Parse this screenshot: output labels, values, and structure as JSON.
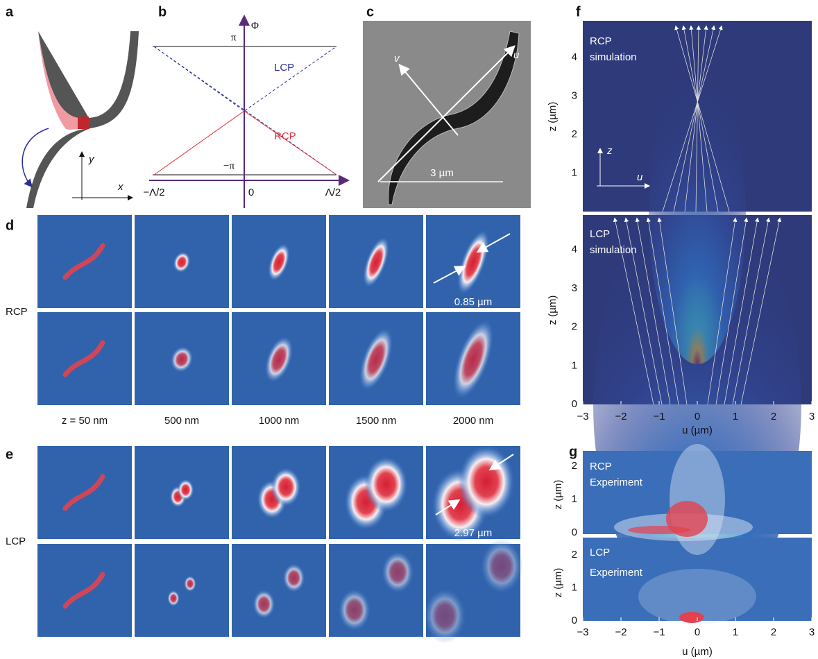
{
  "panels": {
    "a": {
      "label": "a",
      "y": "y",
      "x": "x"
    },
    "b": {
      "label": "b",
      "phi": "Φ",
      "pi": "π",
      "minus_pi": "−π",
      "lcp": "LCP",
      "rcp": "RCP",
      "xticks": [
        "−Λ/2",
        "0",
        "Λ/2"
      ]
    },
    "c": {
      "label": "c",
      "v": "v",
      "u": "u",
      "scale": "3 µm"
    },
    "d": {
      "label": "d",
      "row": "RCP",
      "size": "0.85 µm",
      "captions": [
        "z = 50 nm",
        "500 nm",
        "1000 nm",
        "1500 nm",
        "2000 nm"
      ]
    },
    "e": {
      "label": "e",
      "row": "LCP",
      "size": "2.97 µm"
    },
    "f": {
      "label": "f",
      "top": {
        "line1": "RCP",
        "line2": "simulation",
        "yticks": [
          "1",
          "2",
          "3",
          "4"
        ]
      },
      "bottom": {
        "line1": "LCP",
        "line2": "simulation",
        "yticks": [
          "0",
          "1",
          "2",
          "3",
          "4"
        ]
      },
      "ylabel": "z (µm)",
      "xlabel": "u (µm)",
      "xticks": [
        "−3",
        "−2",
        "−1",
        "0",
        "1",
        "2",
        "3"
      ],
      "inset_z": "z",
      "inset_u": "u"
    },
    "g": {
      "label": "g",
      "top": {
        "line1": "RCP",
        "line2": "Experiment"
      },
      "bottom": {
        "line1": "LCP",
        "line2": "Experiment"
      },
      "yticks": [
        "0",
        "1",
        "2"
      ],
      "ylabel": "z (µm)",
      "xlabel": "u (µm)",
      "xticks": [
        "−3",
        "−2",
        "−1",
        "0",
        "1",
        "2",
        "3"
      ]
    }
  }
}
